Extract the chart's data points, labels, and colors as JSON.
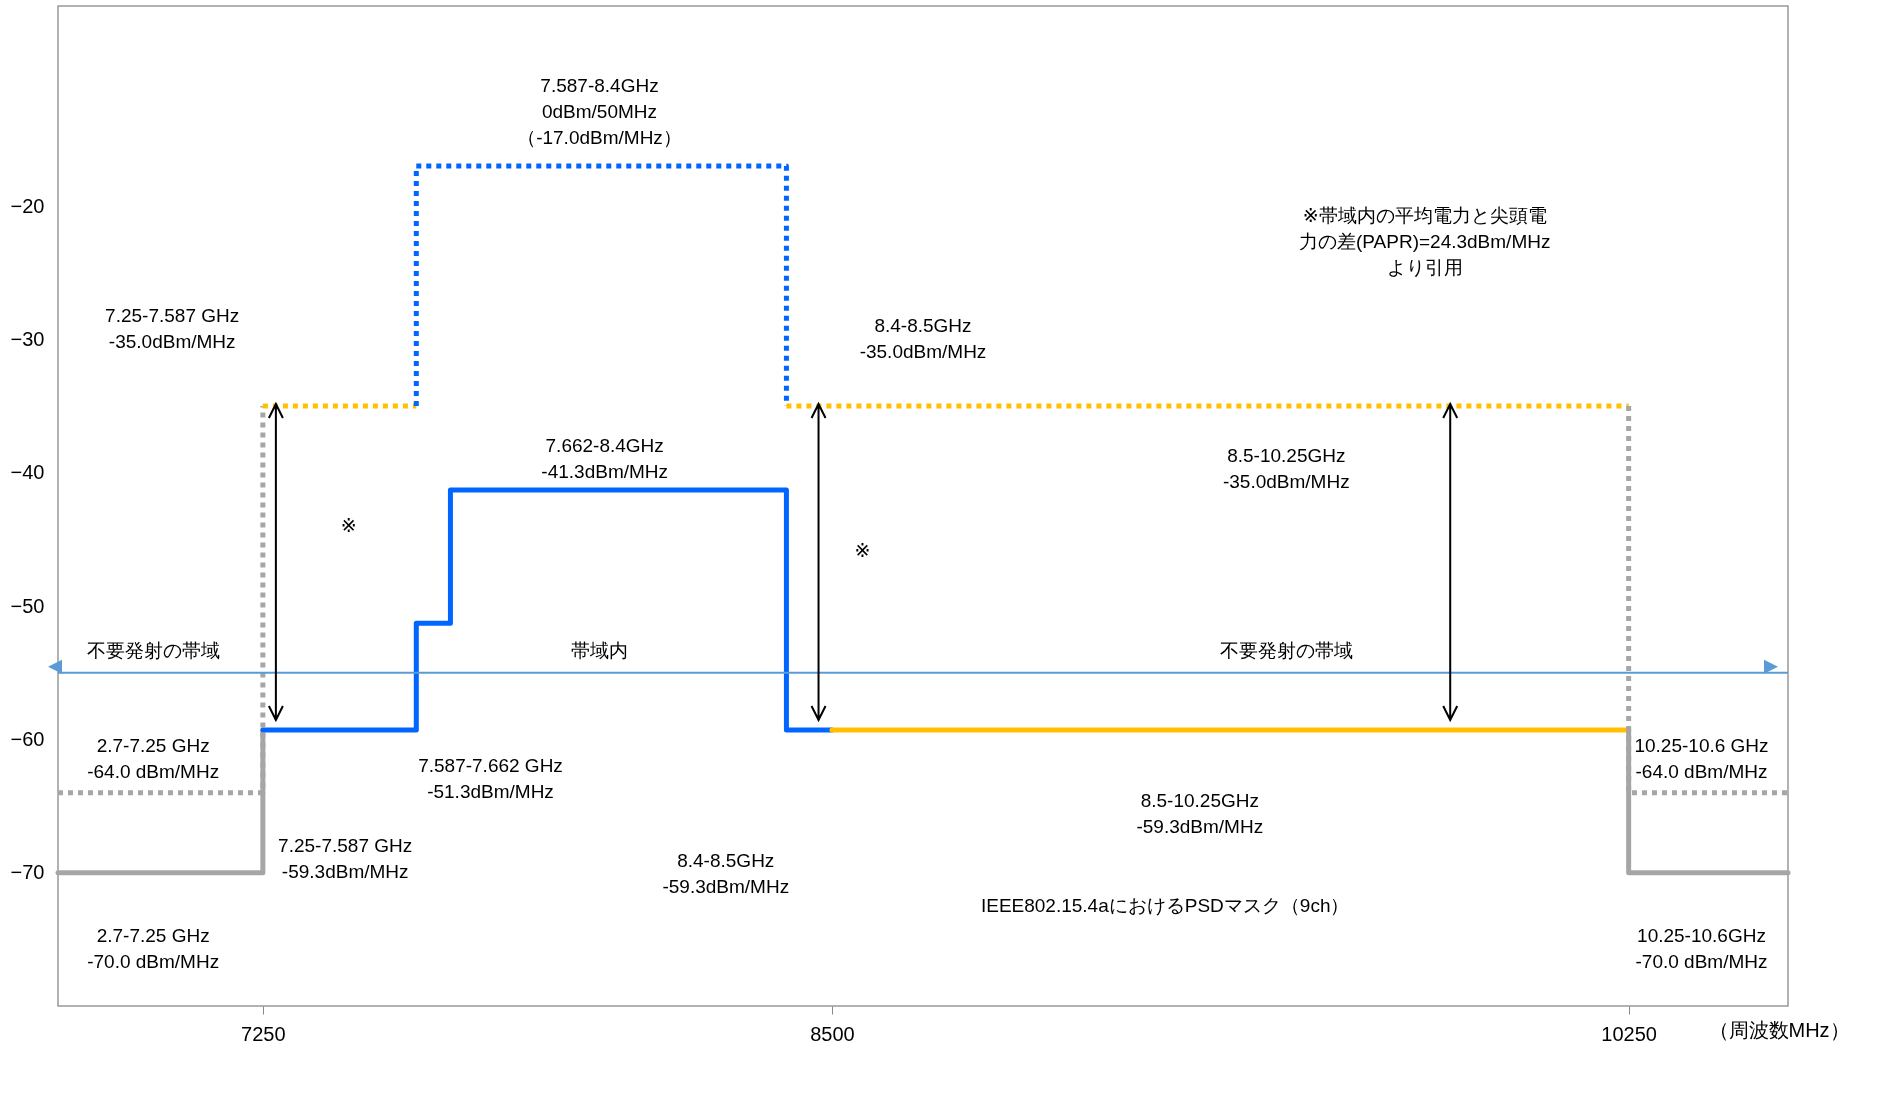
{
  "chart_data": {
    "type": "line",
    "xlabel": "（周波数MHz）",
    "xlim": [
      6800,
      10600
    ],
    "xticks": [
      7250,
      8500,
      10250
    ],
    "ylim": [
      -80,
      -5
    ],
    "yticks": [
      -70,
      -60,
      -50,
      -40,
      -30,
      -20
    ],
    "grid": false,
    "marker": "none",
    "ref_lines": [
      {
        "axis": "y",
        "value": -55,
        "color": "#5b9bd5"
      }
    ],
    "series": [
      {
        "color": "#a6a6a6",
        "line_style": "solid",
        "x": [
          6800,
          7250,
          7250
        ],
        "values": [
          -70,
          -70,
          -59.3
        ]
      },
      {
        "color": "#0066ff",
        "line_style": "solid",
        "x": [
          7250,
          7587,
          7587,
          7662,
          7662,
          8400,
          8400,
          8500
        ],
        "values": [
          -59.3,
          -59.3,
          -51.3,
          -51.3,
          -41.3,
          -41.3,
          -59.3,
          -59.3
        ]
      },
      {
        "color": "#ffc000",
        "line_style": "solid",
        "x": [
          8500,
          10250
        ],
        "values": [
          -59.3,
          -59.3
        ]
      },
      {
        "color": "#a6a6a6",
        "line_style": "solid",
        "x": [
          10250,
          10250,
          10600
        ],
        "values": [
          -59.3,
          -70,
          -70
        ]
      },
      {
        "color": "#a6a6a6",
        "line_style": "dotted",
        "x": [
          6800,
          7250,
          7250
        ],
        "values": [
          -64,
          -64,
          -35
        ]
      },
      {
        "color": "#ffc000",
        "line_style": "dotted",
        "x": [
          7250,
          7587
        ],
        "values": [
          -35,
          -35
        ]
      },
      {
        "color": "#0066ff",
        "line_style": "dotted",
        "x": [
          7587,
          7587,
          8400,
          8400
        ],
        "values": [
          -35,
          -17,
          -17,
          -35
        ]
      },
      {
        "color": "#ffc000",
        "line_style": "dotted",
        "x": [
          8400,
          10250
        ],
        "values": [
          -35,
          -35
        ]
      },
      {
        "color": "#a6a6a6",
        "line_style": "dotted",
        "x": [
          10250,
          10250,
          10600
        ],
        "values": [
          -35,
          -64,
          -64
        ]
      }
    ],
    "annotations": [
      "7.587-8.4GHz\n0dBm/50MHz\n（-17.0dBm/MHz）",
      "7.25-7.587 GHz\n-35.0dBm/MHz",
      "8.4-8.5GHz\n-35.0dBm/MHz",
      "※帯域内の平均電力と尖頭電力の差(PAPR)=24.3dBm/MHzより引用",
      "8.5-10.25GHz\n-35.0dBm/MHz",
      "7.662-8.4GHz\n-41.3dBm/MHz",
      "※",
      "※",
      "不要発射の帯域",
      "帯域内",
      "不要発射の帯域",
      "2.7-7.25 GHz\n-64.0 dBm/MHz",
      "7.587-7.662 GHz\n-51.3dBm/MHz",
      "7.25-7.587 GHz\n-59.3dBm/MHz",
      "8.4-8.5GHz\n-59.3dBm/MHz",
      "8.5-10.25GHz\n-59.3dBm/MHz",
      "IEEE802.15.4aにおけるPSDマスク（9ch）",
      "10.25-10.6 GHz\n-64.0 dBm/MHz",
      "2.7-7.25 GHz\n-70.0 dBm/MHz",
      "10.25-10.6GHz\n-70.0 dBm/MHz"
    ]
  }
}
